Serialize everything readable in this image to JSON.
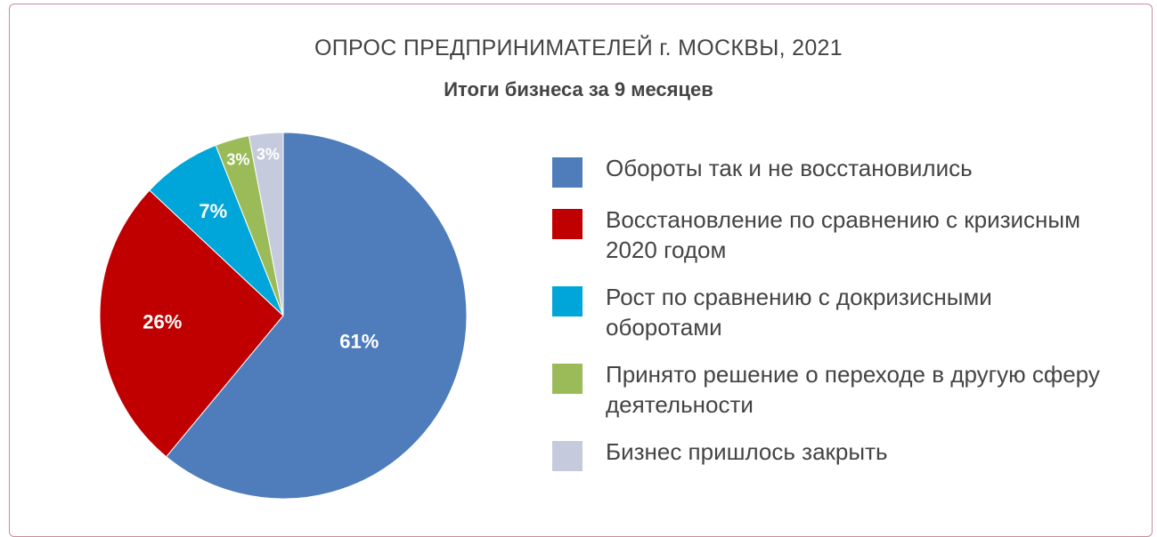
{
  "header": {
    "title": "ОПРОС ПРЕДПРИНИМАТЕЛЕЙ г. МОСКВЫ, 2021",
    "subtitle": "Итоги бизнеса за 9 месяцев"
  },
  "chart_data": {
    "type": "pie",
    "title": "ОПРОС ПРЕДПРИНИМАТЕЛЕЙ г. МОСКВЫ, 2021",
    "subtitle": "Итоги бизнеса за 9 месяцев",
    "legend_position": "right",
    "slices": [
      {
        "label": "Обороты так и не восстановились",
        "value": 61,
        "display": "61%",
        "color": "#4f7dbb"
      },
      {
        "label": "Восстановление по сравнению с кризисным 2020 годом",
        "value": 26,
        "display": "26%",
        "color": "#c00000"
      },
      {
        "label": "Рост по сравнению с докризисными оборотами",
        "value": 7,
        "display": "7%",
        "color": "#00a6d9"
      },
      {
        "label": "Принято решение о переходе в другую сферу деятельности",
        "value": 3,
        "display": "3%",
        "color": "#9bbb59"
      },
      {
        "label": "Бизнес пришлось закрыть",
        "value": 3,
        "display": "3%",
        "color": "#c5cbdc"
      }
    ]
  }
}
